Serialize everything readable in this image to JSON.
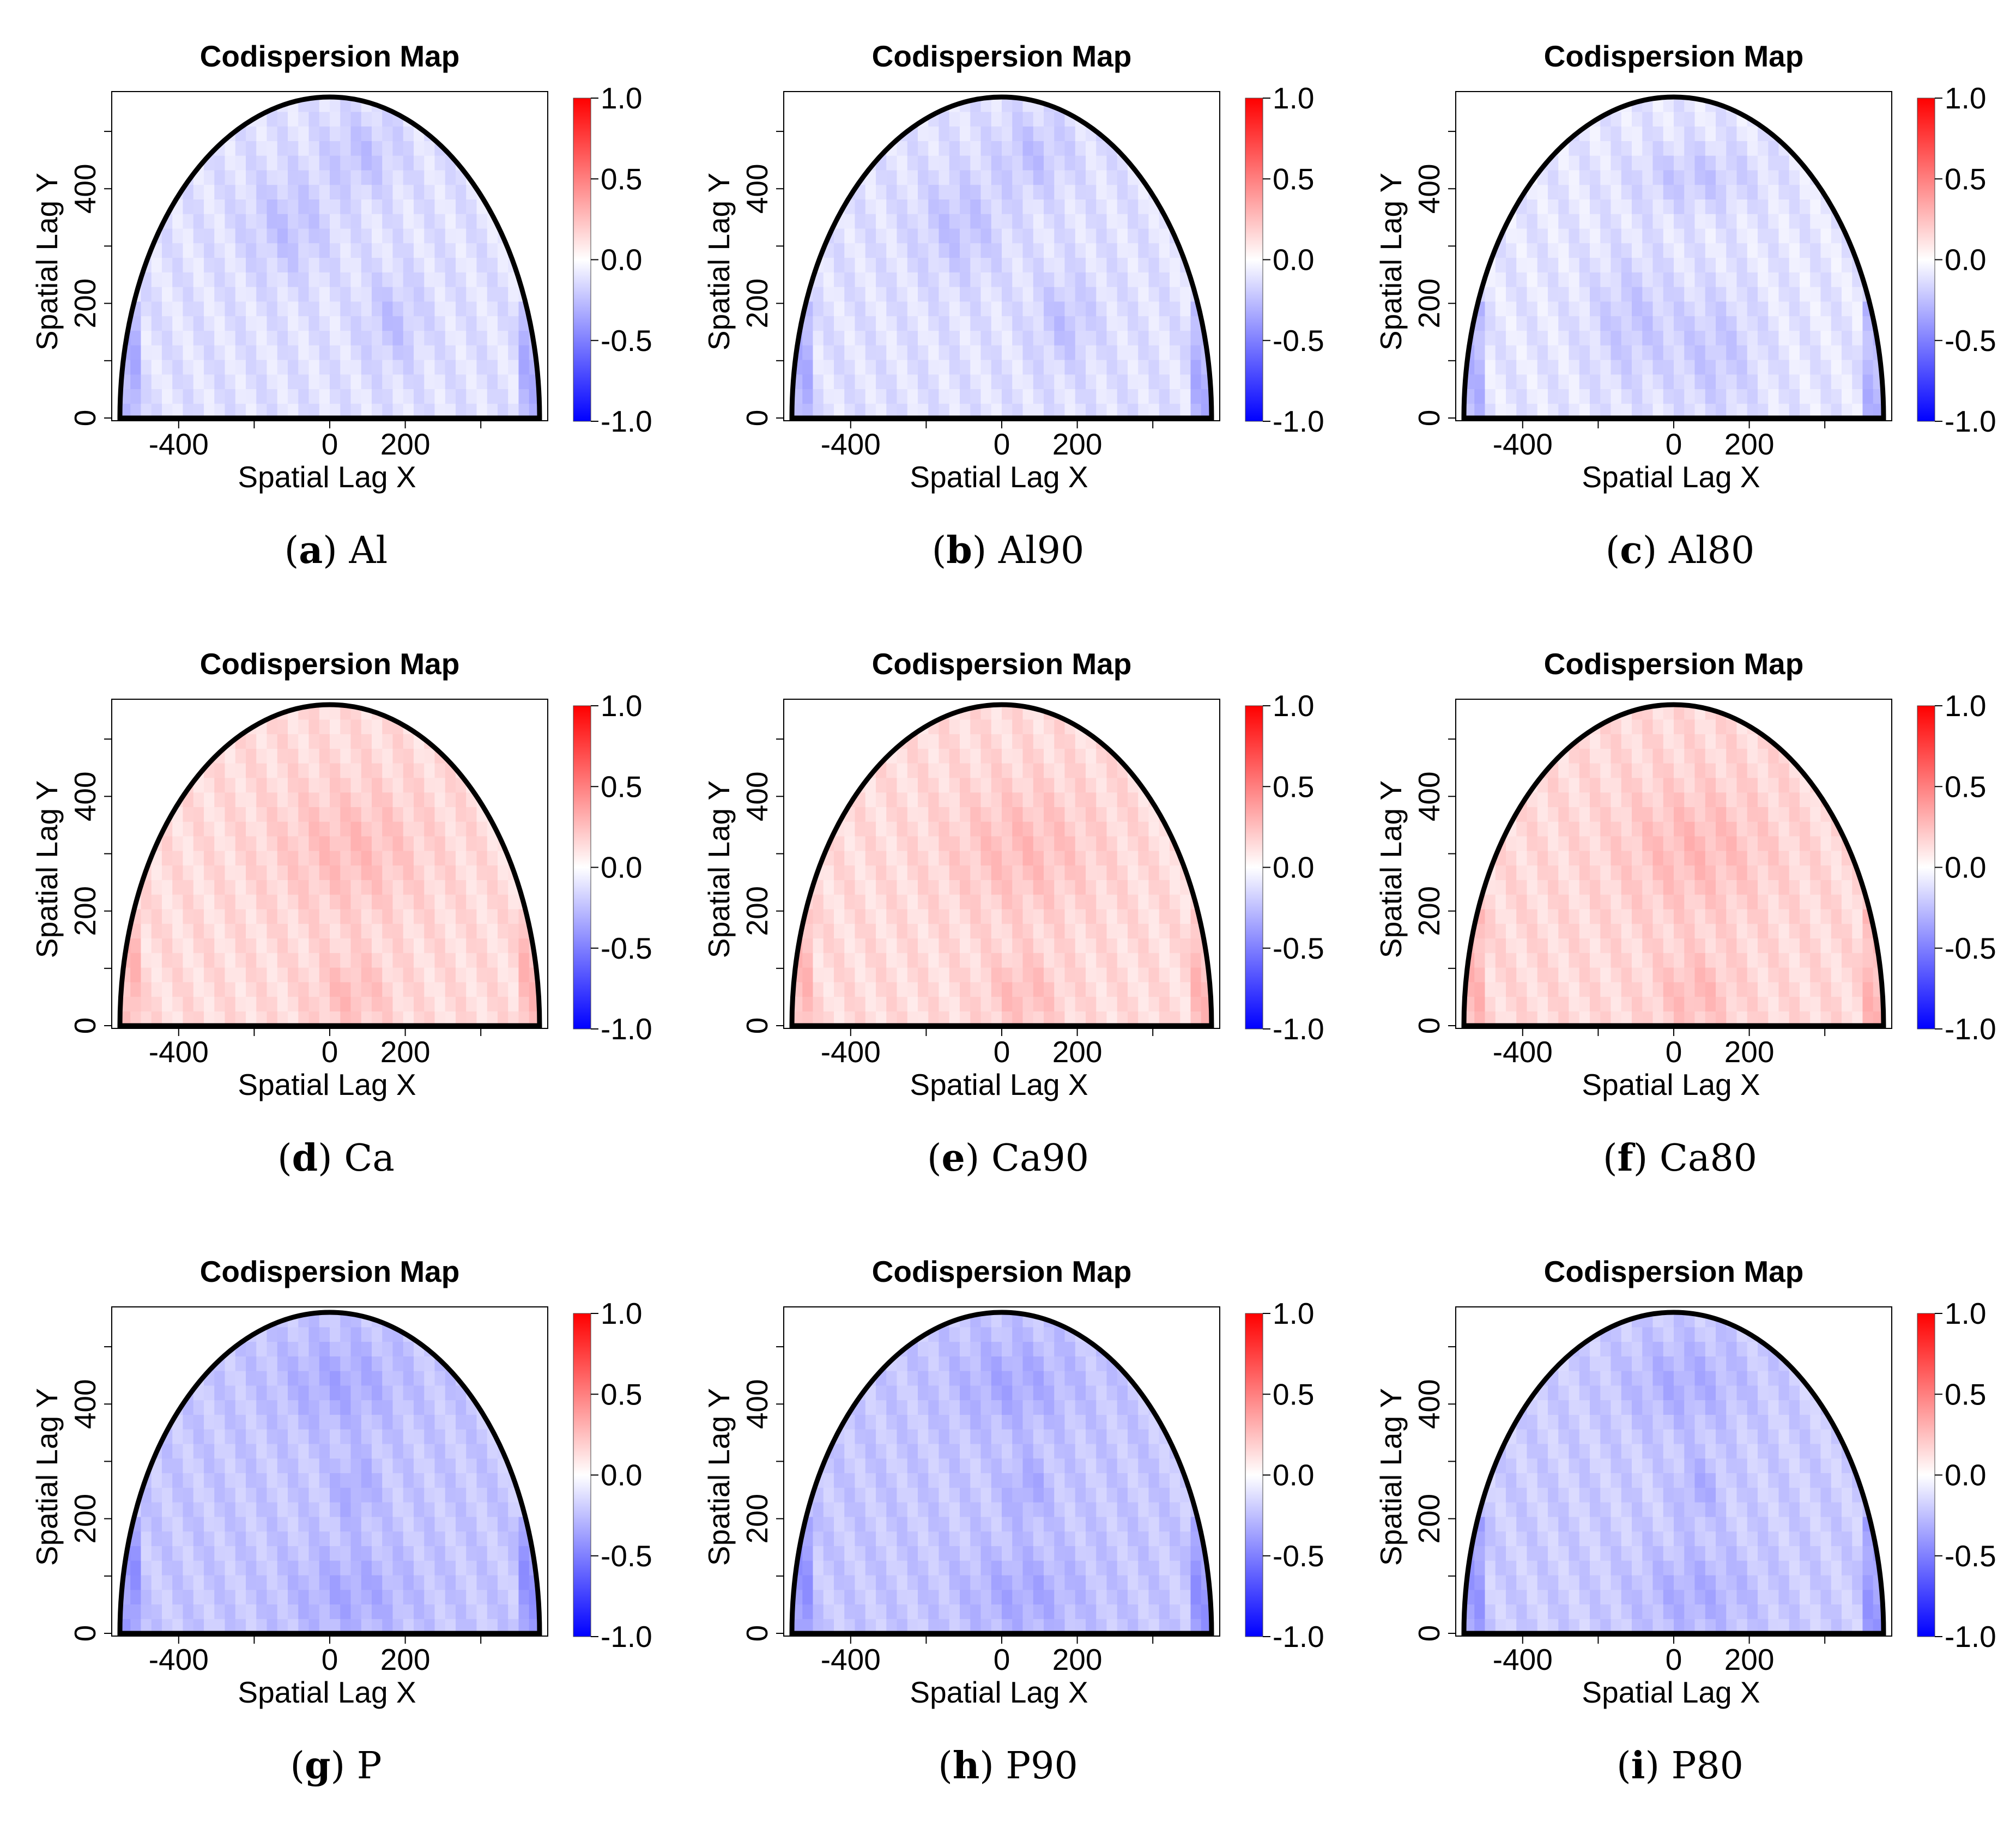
{
  "chart_data": [
    {
      "type": "heatmap",
      "title": "Codispersion Map",
      "xlabel": "Spatial Lag X",
      "ylabel": "Spatial Lag Y",
      "xlim": [
        -570,
        570
      ],
      "ylim": [
        0,
        560
      ],
      "xticks": [
        -400,
        0,
        200
      ],
      "yticks": [
        0,
        200,
        400
      ],
      "colorbar": {
        "range": [
          -1.0,
          1.0
        ],
        "ticks": [
          "1.0",
          "0.5",
          "0.0",
          "-0.5",
          "-1.0"
        ],
        "low_color": "#0000ff",
        "mid_color": "#ffffff",
        "high_color": "#ff0000"
      },
      "caption_letter": "a",
      "caption_name": "Al",
      "mean_value": -0.12,
      "blobs": [
        [
          -0.2,
          0.6,
          0.2,
          0.16
        ],
        [
          0.15,
          0.82,
          0.18,
          0.12
        ],
        [
          0.3,
          0.3,
          0.14,
          0.14
        ]
      ]
    },
    {
      "type": "heatmap",
      "title": "Codispersion Map",
      "xlabel": "Spatial Lag X",
      "ylabel": "Spatial Lag Y",
      "xlim": [
        -570,
        570
      ],
      "ylim": [
        0,
        560
      ],
      "xticks": [
        -400,
        0,
        200
      ],
      "yticks": [
        0,
        200,
        400
      ],
      "colorbar": {
        "range": [
          -1.0,
          1.0
        ],
        "ticks": [
          "1.0",
          "0.5",
          "0.0",
          "-0.5",
          "-1.0"
        ],
        "low_color": "#0000ff",
        "mid_color": "#ffffff",
        "high_color": "#ff0000"
      },
      "caption_letter": "b",
      "caption_name": "Al90",
      "mean_value": -0.12,
      "blobs": [
        [
          -0.2,
          0.6,
          0.2,
          0.16
        ],
        [
          0.15,
          0.82,
          0.18,
          0.12
        ],
        [
          0.3,
          0.3,
          0.14,
          0.14
        ]
      ]
    },
    {
      "type": "heatmap",
      "title": "Codispersion Map",
      "xlabel": "Spatial Lag X",
      "ylabel": "Spatial Lag Y",
      "xlim": [
        -570,
        570
      ],
      "ylim": [
        0,
        560
      ],
      "xticks": [
        -400,
        0,
        200
      ],
      "yticks": [
        0,
        200,
        400
      ],
      "colorbar": {
        "range": [
          -1.0,
          1.0
        ],
        "ticks": [
          "1.0",
          "0.5",
          "0.0",
          "-0.5",
          "-1.0"
        ],
        "low_color": "#0000ff",
        "mid_color": "#ffffff",
        "high_color": "#ff0000"
      },
      "caption_letter": "c",
      "caption_name": "Al80",
      "mean_value": -0.1,
      "blobs": [
        [
          0.1,
          0.75,
          0.3,
          0.1
        ],
        [
          -0.2,
          0.3,
          0.2,
          0.2
        ],
        [
          0.2,
          0.2,
          0.2,
          0.2
        ]
      ]
    },
    {
      "type": "heatmap",
      "title": "Codispersion Map",
      "xlabel": "Spatial Lag X",
      "ylabel": "Spatial Lag Y",
      "xlim": [
        -570,
        570
      ],
      "ylim": [
        0,
        560
      ],
      "xticks": [
        -400,
        0,
        200
      ],
      "yticks": [
        0,
        200,
        400
      ],
      "colorbar": {
        "range": [
          -1.0,
          1.0
        ],
        "ticks": [
          "1.0",
          "0.5",
          "0.0",
          "-0.5",
          "-1.0"
        ],
        "low_color": "#0000ff",
        "mid_color": "#ffffff",
        "high_color": "#ff0000"
      },
      "caption_letter": "d",
      "caption_name": "Ca",
      "mean_value": 0.14,
      "blobs": [
        [
          0.1,
          0.55,
          0.35,
          0.2
        ],
        [
          0.1,
          0.1,
          0.18,
          0.12
        ]
      ]
    },
    {
      "type": "heatmap",
      "title": "Codispersion Map",
      "xlabel": "Spatial Lag X",
      "ylabel": "Spatial Lag Y",
      "xlim": [
        -570,
        570
      ],
      "ylim": [
        0,
        560
      ],
      "xticks": [
        -400,
        0,
        200
      ],
      "yticks": [
        0,
        200,
        400
      ],
      "colorbar": {
        "range": [
          -1.0,
          1.0
        ],
        "ticks": [
          "1.0",
          "0.5",
          "0.0",
          "-0.5",
          "-1.0"
        ],
        "low_color": "#0000ff",
        "mid_color": "#ffffff",
        "high_color": "#ff0000"
      },
      "caption_letter": "e",
      "caption_name": "Ca90",
      "mean_value": 0.14,
      "blobs": [
        [
          0.1,
          0.55,
          0.35,
          0.2
        ],
        [
          0.1,
          0.1,
          0.18,
          0.12
        ]
      ]
    },
    {
      "type": "heatmap",
      "title": "Codispersion Map",
      "xlabel": "Spatial Lag X",
      "ylabel": "Spatial Lag Y",
      "xlim": [
        -570,
        570
      ],
      "ylim": [
        0,
        560
      ],
      "xticks": [
        -400,
        0,
        200
      ],
      "yticks": [
        0,
        200,
        400
      ],
      "colorbar": {
        "range": [
          -1.0,
          1.0
        ],
        "ticks": [
          "1.0",
          "0.5",
          "0.0",
          "-0.5",
          "-1.0"
        ],
        "low_color": "#0000ff",
        "mid_color": "#ffffff",
        "high_color": "#ff0000"
      },
      "caption_letter": "f",
      "caption_name": "Ca80",
      "mean_value": 0.15,
      "blobs": [
        [
          0.1,
          0.55,
          0.35,
          0.2
        ],
        [
          0.1,
          0.1,
          0.18,
          0.12
        ]
      ]
    },
    {
      "type": "heatmap",
      "title": "Codispersion Map",
      "xlabel": "Spatial Lag X",
      "ylabel": "Spatial Lag Y",
      "xlim": [
        -570,
        570
      ],
      "ylim": [
        0,
        560
      ],
      "xticks": [
        -400,
        0,
        200
      ],
      "yticks": [
        0,
        200,
        400
      ],
      "colorbar": {
        "range": [
          -1.0,
          1.0
        ],
        "ticks": [
          "1.0",
          "0.5",
          "0.0",
          "-0.5",
          "-1.0"
        ],
        "low_color": "#0000ff",
        "mid_color": "#ffffff",
        "high_color": "#ff0000"
      },
      "caption_letter": "g",
      "caption_name": "P",
      "mean_value": -0.22,
      "blobs": [
        [
          0.05,
          0.78,
          0.28,
          0.14
        ],
        [
          0.12,
          0.45,
          0.1,
          0.1
        ],
        [
          0.1,
          0.12,
          0.28,
          0.14
        ]
      ]
    },
    {
      "type": "heatmap",
      "title": "Codispersion Map",
      "xlabel": "Spatial Lag X",
      "ylabel": "Spatial Lag Y",
      "xlim": [
        -570,
        570
      ],
      "ylim": [
        0,
        560
      ],
      "xticks": [
        -400,
        0,
        200
      ],
      "yticks": [
        0,
        200,
        400
      ],
      "colorbar": {
        "range": [
          -1.0,
          1.0
        ],
        "ticks": [
          "1.0",
          "0.5",
          "0.0",
          "-0.5",
          "-1.0"
        ],
        "low_color": "#0000ff",
        "mid_color": "#ffffff",
        "high_color": "#ff0000"
      },
      "caption_letter": "h",
      "caption_name": "P90",
      "mean_value": -0.22,
      "blobs": [
        [
          0.05,
          0.78,
          0.28,
          0.14
        ],
        [
          0.12,
          0.45,
          0.1,
          0.1
        ],
        [
          0.1,
          0.12,
          0.28,
          0.14
        ]
      ]
    },
    {
      "type": "heatmap",
      "title": "Codispersion Map",
      "xlabel": "Spatial Lag X",
      "ylabel": "Spatial Lag Y",
      "xlim": [
        -570,
        570
      ],
      "ylim": [
        0,
        560
      ],
      "xticks": [
        -400,
        0,
        200
      ],
      "yticks": [
        0,
        200,
        400
      ],
      "colorbar": {
        "range": [
          -1.0,
          1.0
        ],
        "ticks": [
          "1.0",
          "0.5",
          "0.0",
          "-0.5",
          "-1.0"
        ],
        "low_color": "#0000ff",
        "mid_color": "#ffffff",
        "high_color": "#ff0000"
      },
      "caption_letter": "i",
      "caption_name": "P80",
      "mean_value": -0.2,
      "blobs": [
        [
          0.05,
          0.78,
          0.28,
          0.14
        ],
        [
          0.12,
          0.45,
          0.1,
          0.1
        ],
        [
          0.1,
          0.12,
          0.28,
          0.14
        ]
      ]
    }
  ]
}
